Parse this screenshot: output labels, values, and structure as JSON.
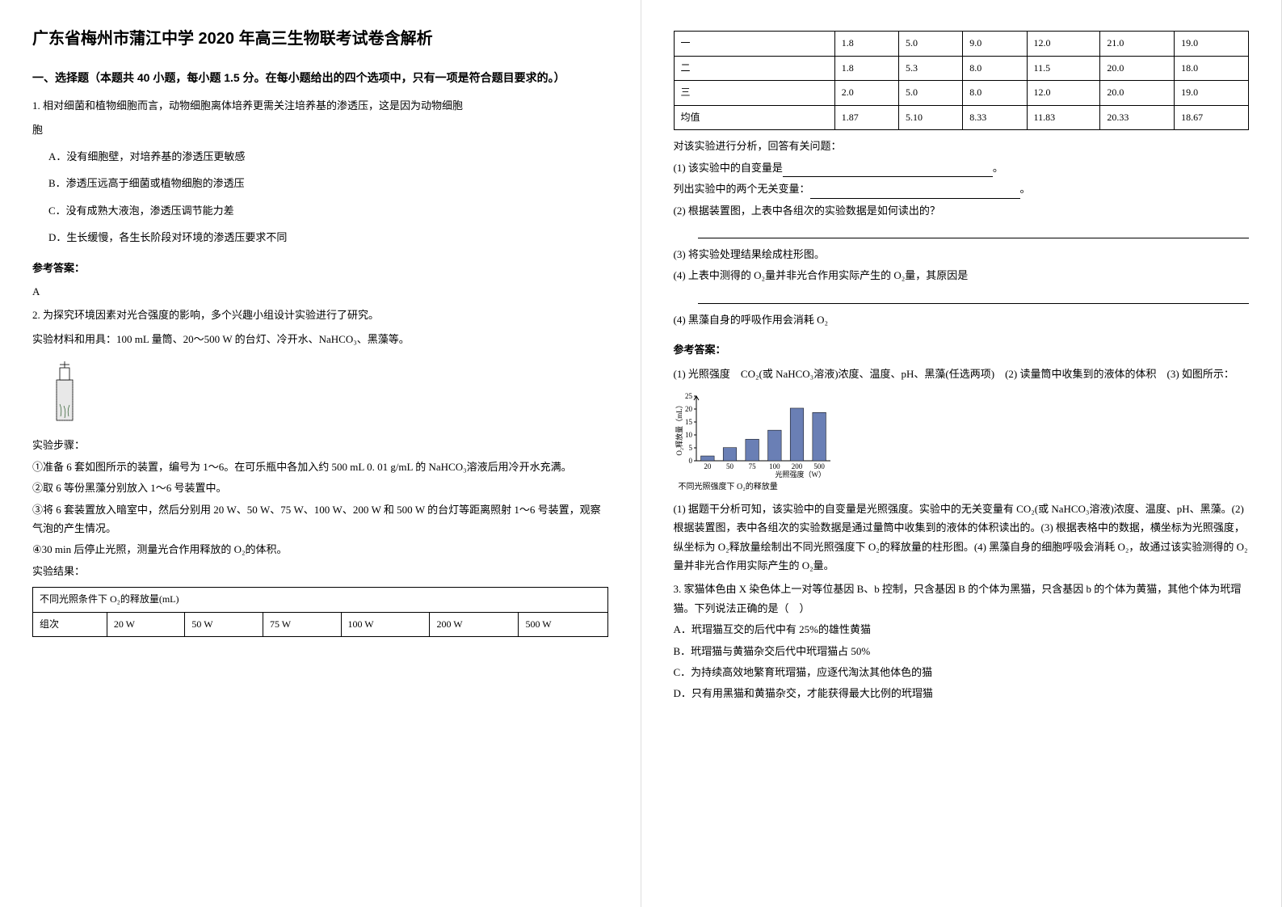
{
  "title": "广东省梅州市蒲江中学 2020 年高三生物联考试卷含解析",
  "section1_heading": "一、选择题（本题共 40 小题，每小题 1.5 分。在每小题给出的四个选项中，只有一项是符合题目要求的。）",
  "q1": {
    "stem": "1. 相对细菌和植物细胞而言，动物细胞离体培养更需关注培养基的渗透压，这是因为动物细胞",
    "optA": "A．没有细胞壁，对培养基的渗透压更敏感",
    "optB": "B．渗透压远高于细菌或植物细胞的渗透压",
    "optC": "C．没有成熟大液泡，渗透压调节能力差",
    "optD": "D．生长缓慢，各生长阶段对环境的渗透压要求不同"
  },
  "answer_label": "参考答案：",
  "q1_answer": "A",
  "q2": {
    "stem1": "2. 为探究环境因素对光合强度的影响，多个兴趣小组设计实验进行了研究。",
    "stem2": "实验材料和用具：100 mL 量筒、20～500 W 的台灯、冷开水、NaHCO₃、黑藻等。",
    "steps_label": "实验步骤：",
    "step1": "①准备 6 套如图所示的装置，编号为 1～6。在可乐瓶中各加入约 500 mL 0. 01 g/mL 的 NaHCO₃溶液后用冷开水充满。",
    "step2": "②取 6 等份黑藻分别放入 1～6 号装置中。",
    "step3": "③将 6 套装置放入暗室中，然后分别用 20 W、50 W、75 W、100 W、200 W 和 500 W 的台灯等距离照射 1～6 号装置，观察气泡的产生情况。",
    "step4": "④30 min 后停止光照，测量光合作用释放的 O₂的体积。",
    "results_label": "实验结果："
  },
  "table1": {
    "title": "不同光照条件下 O₂的释放量(mL)",
    "headers": [
      "组次",
      "20 W",
      "50 W",
      "75 W",
      "100 W",
      "200 W",
      "500 W"
    ]
  },
  "table2": {
    "rows": [
      [
        "一",
        "1.8",
        "5.0",
        "9.0",
        "12.0",
        "21.0",
        "19.0"
      ],
      [
        "二",
        "1.8",
        "5.3",
        "8.0",
        "11.5",
        "20.0",
        "18.0"
      ],
      [
        "三",
        "2.0",
        "5.0",
        "8.0",
        "12.0",
        "20.0",
        "19.0"
      ],
      [
        "均值",
        "1.87",
        "5.10",
        "8.33",
        "11.83",
        "20.33",
        "18.67"
      ]
    ]
  },
  "q2b": {
    "intro": "对该实验进行分析，回答有关问题：",
    "sub1a": "(1) 该实验中的自变量是",
    "sub1b": "列出实验中的两个无关变量：",
    "sub2": "(2) 根据装置图，上表中各组次的实验数据是如何读出的？",
    "sub3": "(3) 将实验处理结果绘成柱形图。",
    "sub4": "(4) 上表中测得的 O₂量并非光合作用实际产生的 O₂量，其原因是",
    "sub4b": "(4) 黑藻自身的呼吸作用会消耗 O₂"
  },
  "q2_answer": {
    "ans1": "(1) 光照强度　CO₂(或 NaHCO₃溶液)浓度、温度、pH、黑藻(任选两项)　(2) 读量筒中收集到的液体的体积　(3) 如图所示：",
    "chart_caption": "不同光照强度下 O₂的释放量",
    "chart_xlabel": "光照强度（W）",
    "chart_ylabel": "O₂释放量（mL）",
    "ans2": "(1) 据题干分析可知，该实验中的自变量是光照强度。实验中的无关变量有 CO₂(或 NaHCO₃溶液)浓度、温度、pH、黑藻。(2) 根据装置图，表中各组次的实验数据是通过量筒中收集到的液体的体积读出的。(3) 根据表格中的数据，横坐标为光照强度，纵坐标为 O₂释放量绘制出不同光照强度下 O₂的释放量的柱形图。(4) 黑藻自身的细胞呼吸会消耗 O₂，故通过该实验测得的 O₂量并非光合作用实际产生的 O₂量。"
  },
  "chart": {
    "type": "bar",
    "categories": [
      "20",
      "50",
      "75",
      "100",
      "200",
      "500"
    ],
    "values": [
      1.87,
      5.1,
      8.33,
      11.83,
      20.33,
      18.67
    ],
    "bar_color": "#6a7fb5",
    "ylim": [
      0,
      25
    ],
    "ytick_step": 5,
    "axis_color": "#000000",
    "label_fontsize": 9
  },
  "q3": {
    "stem": "3. 家猫体色由 X 染色体上一对等位基因 B、b 控制，只含基因 B 的个体为黑猫，只含基因 b 的个体为黄猫，其他个体为玳瑁猫。下列说法正确的是（　）",
    "optA": "A．玳瑁猫互交的后代中有 25%的雄性黄猫",
    "optB": "B．玳瑁猫与黄猫杂交后代中玳瑁猫占 50%",
    "optC": "C．为持续高效地繁育玳瑁猫，应逐代淘汰其他体色的猫",
    "optD": "D．只有用黑猫和黄猫杂交，才能获得最大比例的玳瑁猫"
  },
  "period": "。"
}
